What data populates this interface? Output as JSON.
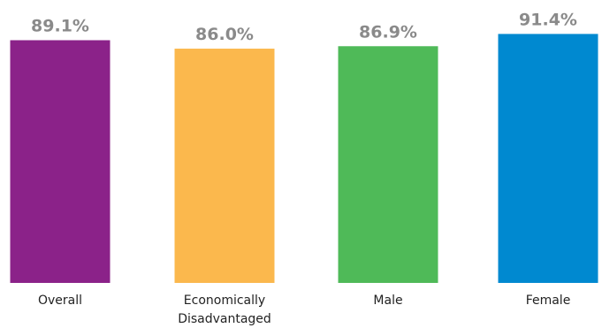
{
  "chart_data": {
    "type": "bar",
    "categories": [
      [
        "Overall"
      ],
      [
        "Economically",
        "Disadvantaged"
      ],
      [
        "Male"
      ],
      [
        "Female"
      ]
    ],
    "values": [
      89.1,
      86.0,
      86.9,
      91.4
    ],
    "value_labels": [
      "89.1%",
      "86.0%",
      "86.9%",
      "91.4%"
    ],
    "colors": [
      "#8b2289",
      "#fbb84d",
      "#4fba58",
      "#0089d0"
    ],
    "value_label_color": "#8a8a8a",
    "ylim": [
      0,
      100
    ],
    "grid": false,
    "title": "",
    "xlabel": "",
    "ylabel": ""
  }
}
